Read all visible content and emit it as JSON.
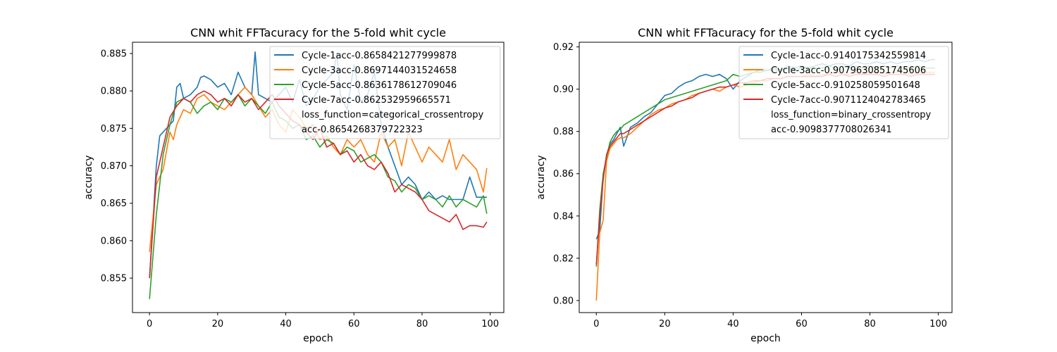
{
  "chart_data": [
    {
      "type": "line",
      "title": "CNN whit FFTacuracy for the 5-fold whit cycle",
      "xlabel": "epoch",
      "ylabel": "accuracy",
      "xlim": [
        -5,
        104
      ],
      "ylim": [
        0.8504,
        0.8865
      ],
      "xticks": [
        0,
        20,
        40,
        60,
        80,
        100
      ],
      "xtick_labels": [
        "0",
        "20",
        "40",
        "60",
        "80",
        "100"
      ],
      "yticks": [
        0.855,
        0.86,
        0.865,
        0.87,
        0.875,
        0.88,
        0.885
      ],
      "ytick_labels": [
        "0.855",
        "0.860",
        "0.865",
        "0.870",
        "0.875",
        "0.880",
        "0.885"
      ],
      "grid": false,
      "legend_position": "top-right",
      "legend_extra": [
        "loss_function=categorical_crossentropy",
        "acc-0.8654268379722323"
      ],
      "series": [
        {
          "name": "Cycle-1acc-0.8658421277999878",
          "color": "#1f77b4",
          "x": [
            0,
            2,
            3,
            5,
            7,
            8,
            9,
            10,
            12,
            14,
            15,
            16,
            18,
            20,
            22,
            24,
            26,
            28,
            30,
            31,
            32,
            34,
            36,
            38,
            40,
            42,
            44,
            46,
            48,
            50,
            52,
            54,
            55,
            56,
            58,
            60,
            62,
            64,
            66,
            68,
            70,
            72,
            74,
            76,
            78,
            80,
            82,
            84,
            86,
            88,
            90,
            92,
            94,
            96,
            99
          ],
          "y": [
            0.855,
            0.87,
            0.874,
            0.875,
            0.876,
            0.8805,
            0.881,
            0.879,
            0.8795,
            0.8805,
            0.8818,
            0.882,
            0.8815,
            0.8805,
            0.881,
            0.8795,
            0.8825,
            0.8805,
            0.8795,
            0.8852,
            0.8795,
            0.879,
            0.8785,
            0.8795,
            0.8805,
            0.8785,
            0.8815,
            0.878,
            0.879,
            0.8805,
            0.8815,
            0.8825,
            0.885,
            0.8795,
            0.8775,
            0.8835,
            0.8785,
            0.8795,
            0.8825,
            0.8755,
            0.8725,
            0.87,
            0.8675,
            0.8685,
            0.8675,
            0.8655,
            0.8665,
            0.8655,
            0.866,
            0.8655,
            0.8655,
            0.8655,
            0.8685,
            0.8658,
            0.8658
          ]
        },
        {
          "name": "Cycle-3acc-0.8697144031524658",
          "color": "#ff7f0e",
          "x": [
            0,
            2,
            4,
            6,
            7,
            8,
            10,
            12,
            14,
            16,
            18,
            20,
            22,
            24,
            26,
            28,
            30,
            32,
            34,
            36,
            38,
            40,
            42,
            44,
            46,
            48,
            50,
            52,
            54,
            56,
            58,
            60,
            62,
            64,
            66,
            68,
            70,
            72,
            74,
            76,
            78,
            80,
            82,
            84,
            86,
            88,
            90,
            92,
            94,
            96,
            98,
            99
          ],
          "y": [
            0.8585,
            0.8675,
            0.8695,
            0.8745,
            0.8735,
            0.8755,
            0.8775,
            0.877,
            0.879,
            0.8795,
            0.8785,
            0.878,
            0.8775,
            0.8785,
            0.8795,
            0.8805,
            0.8795,
            0.878,
            0.8765,
            0.8775,
            0.8755,
            0.8745,
            0.8775,
            0.8765,
            0.875,
            0.8755,
            0.8735,
            0.874,
            0.8725,
            0.8715,
            0.8735,
            0.8725,
            0.8735,
            0.8715,
            0.8705,
            0.8745,
            0.8725,
            0.8735,
            0.87,
            0.8745,
            0.8725,
            0.8705,
            0.8725,
            0.8715,
            0.8705,
            0.8735,
            0.8695,
            0.8715,
            0.8705,
            0.8695,
            0.8665,
            0.8697
          ]
        },
        {
          "name": "Cycle-5acc-0.8636178612709046",
          "color": "#2ca02c",
          "x": [
            0,
            2,
            4,
            6,
            8,
            10,
            12,
            14,
            16,
            18,
            20,
            22,
            24,
            26,
            28,
            30,
            32,
            34,
            36,
            38,
            40,
            42,
            44,
            46,
            48,
            50,
            52,
            54,
            56,
            58,
            60,
            62,
            64,
            66,
            68,
            70,
            72,
            74,
            76,
            78,
            80,
            82,
            84,
            86,
            88,
            90,
            92,
            94,
            96,
            98,
            99
          ],
          "y": [
            0.8522,
            0.8635,
            0.8715,
            0.8755,
            0.8785,
            0.879,
            0.8785,
            0.877,
            0.878,
            0.8785,
            0.8775,
            0.879,
            0.8785,
            0.8795,
            0.878,
            0.879,
            0.878,
            0.877,
            0.8785,
            0.8765,
            0.876,
            0.875,
            0.8755,
            0.8735,
            0.874,
            0.8725,
            0.8735,
            0.873,
            0.8715,
            0.8725,
            0.872,
            0.8705,
            0.871,
            0.8715,
            0.8705,
            0.8685,
            0.868,
            0.8665,
            0.8675,
            0.867,
            0.8655,
            0.866,
            0.8655,
            0.8645,
            0.866,
            0.8645,
            0.8655,
            0.865,
            0.8645,
            0.866,
            0.8636
          ]
        },
        {
          "name": "Cycle-7acc-0.862532959665571",
          "color": "#d62728",
          "x": [
            0,
            2,
            4,
            6,
            8,
            10,
            12,
            14,
            16,
            18,
            20,
            22,
            24,
            26,
            28,
            30,
            32,
            34,
            36,
            38,
            40,
            42,
            44,
            46,
            48,
            50,
            52,
            54,
            56,
            58,
            60,
            62,
            64,
            66,
            68,
            70,
            72,
            74,
            76,
            78,
            80,
            82,
            84,
            86,
            88,
            90,
            92,
            94,
            96,
            98,
            99
          ],
          "y": [
            0.855,
            0.8685,
            0.8725,
            0.8765,
            0.878,
            0.879,
            0.8785,
            0.8795,
            0.88,
            0.8795,
            0.8785,
            0.879,
            0.878,
            0.8795,
            0.8785,
            0.879,
            0.8775,
            0.8785,
            0.8795,
            0.878,
            0.877,
            0.876,
            0.8755,
            0.8745,
            0.8735,
            0.875,
            0.8725,
            0.873,
            0.8715,
            0.872,
            0.8705,
            0.8715,
            0.87,
            0.8695,
            0.8705,
            0.869,
            0.8665,
            0.8675,
            0.867,
            0.8665,
            0.8655,
            0.864,
            0.8635,
            0.863,
            0.8625,
            0.8635,
            0.8615,
            0.862,
            0.862,
            0.8618,
            0.8625
          ]
        }
      ]
    },
    {
      "type": "line",
      "title": "CNN whit FFTacuracy for the 5-fold whit cycle",
      "xlabel": "epoch",
      "ylabel": "accuracy",
      "xlim": [
        -5,
        104
      ],
      "ylim": [
        0.7943,
        0.9222
      ],
      "xticks": [
        0,
        20,
        40,
        60,
        80,
        100
      ],
      "xtick_labels": [
        "0",
        "20",
        "40",
        "60",
        "80",
        "100"
      ],
      "yticks": [
        0.8,
        0.82,
        0.84,
        0.86,
        0.88,
        0.9,
        0.92
      ],
      "ytick_labels": [
        "0.80",
        "0.82",
        "0.84",
        "0.86",
        "0.88",
        "0.90",
        "0.92"
      ],
      "grid": false,
      "legend_position": "top-right",
      "legend_extra": [
        "loss_function=binary_crossentropy",
        "acc-0.9098377708026341"
      ],
      "series": [
        {
          "name": "Cycle-1acc-0.9140175342559814",
          "color": "#1f77b4",
          "x": [
            0,
            1,
            2,
            3,
            4,
            5,
            6,
            7,
            8,
            10,
            12,
            14,
            16,
            18,
            20,
            22,
            24,
            26,
            28,
            30,
            32,
            34,
            36,
            38,
            40,
            42,
            44,
            46,
            48,
            50,
            52,
            54,
            56,
            58,
            60,
            62,
            64,
            66,
            68,
            70,
            72,
            74,
            76,
            78,
            80,
            82,
            84,
            86,
            88,
            90,
            92,
            94,
            96,
            98,
            99
          ],
          "y": [
            0.829,
            0.833,
            0.858,
            0.869,
            0.874,
            0.876,
            0.879,
            0.882,
            0.873,
            0.882,
            0.884,
            0.887,
            0.889,
            0.893,
            0.897,
            0.898,
            0.901,
            0.903,
            0.904,
            0.906,
            0.907,
            0.906,
            0.907,
            0.905,
            0.9,
            0.904,
            0.906,
            0.908,
            0.909,
            0.909,
            0.91,
            0.909,
            0.911,
            0.91,
            0.911,
            0.91,
            0.911,
            0.912,
            0.911,
            0.912,
            0.912,
            0.911,
            0.913,
            0.912,
            0.912,
            0.913,
            0.912,
            0.913,
            0.912,
            0.913,
            0.913,
            0.914,
            0.913,
            0.914,
            0.914
          ]
        },
        {
          "name": "Cycle-3acc-0.9079630851745606",
          "color": "#ff7f0e",
          "x": [
            0,
            1,
            2,
            3,
            4,
            5,
            6,
            7,
            8,
            10,
            12,
            14,
            16,
            18,
            20,
            22,
            24,
            26,
            28,
            30,
            32,
            34,
            36,
            38,
            40,
            42,
            44,
            46,
            48,
            50,
            52,
            54,
            56,
            58,
            60,
            62,
            64,
            66,
            68,
            70,
            72,
            74,
            76,
            78,
            80,
            82,
            84,
            86,
            88,
            90,
            92,
            94,
            96,
            98,
            99
          ],
          "y": [
            0.8,
            0.832,
            0.838,
            0.866,
            0.872,
            0.874,
            0.876,
            0.877,
            0.877,
            0.879,
            0.882,
            0.885,
            0.888,
            0.89,
            0.891,
            0.893,
            0.894,
            0.895,
            0.897,
            0.898,
            0.899,
            0.9,
            0.899,
            0.901,
            0.902,
            0.901,
            0.902,
            0.903,
            0.904,
            0.904,
            0.905,
            0.905,
            0.906,
            0.906,
            0.906,
            0.907,
            0.906,
            0.907,
            0.907,
            0.908,
            0.907,
            0.907,
            0.908,
            0.907,
            0.908,
            0.908,
            0.907,
            0.908,
            0.908,
            0.908,
            0.907,
            0.908,
            0.908,
            0.908,
            0.908
          ]
        },
        {
          "name": "Cycle-5acc-0.910258059501648",
          "color": "#2ca02c",
          "x": [
            0,
            1,
            2,
            3,
            4,
            5,
            6,
            7,
            8,
            10,
            12,
            14,
            16,
            18,
            20,
            22,
            24,
            26,
            28,
            30,
            32,
            34,
            36,
            38,
            40,
            42,
            44,
            46,
            48,
            50,
            52,
            54,
            56,
            58,
            60,
            62,
            64,
            66,
            68,
            70,
            72,
            74,
            76,
            78,
            80,
            82,
            84,
            86,
            88,
            90,
            92,
            94,
            96,
            98,
            99
          ],
          "y": [
            0.816,
            0.843,
            0.86,
            0.868,
            0.875,
            0.878,
            0.88,
            0.881,
            0.883,
            0.885,
            0.887,
            0.889,
            0.891,
            0.893,
            0.895,
            0.896,
            0.897,
            0.898,
            0.899,
            0.9,
            0.901,
            0.902,
            0.903,
            0.904,
            0.907,
            0.906,
            0.907,
            0.908,
            0.908,
            0.909,
            0.909,
            0.909,
            0.91,
            0.909,
            0.91,
            0.91,
            0.91,
            0.91,
            0.911,
            0.91,
            0.911,
            0.91,
            0.911,
            0.91,
            0.911,
            0.91,
            0.911,
            0.91,
            0.911,
            0.91,
            0.91,
            0.911,
            0.91,
            0.91,
            0.91
          ]
        },
        {
          "name": "Cycle-7acc-0.9071124042783465",
          "color": "#d62728",
          "x": [
            0,
            1,
            2,
            3,
            4,
            5,
            6,
            7,
            8,
            10,
            12,
            14,
            16,
            18,
            20,
            22,
            24,
            26,
            28,
            30,
            32,
            34,
            36,
            38,
            40,
            42,
            44,
            46,
            48,
            50,
            52,
            54,
            56,
            58,
            60,
            62,
            64,
            66,
            68,
            70,
            72,
            74,
            76,
            78,
            80,
            82,
            84,
            86,
            88,
            90,
            92,
            94,
            96,
            98,
            99
          ],
          "y": [
            0.817,
            0.84,
            0.857,
            0.869,
            0.873,
            0.875,
            0.877,
            0.879,
            0.879,
            0.881,
            0.883,
            0.885,
            0.887,
            0.889,
            0.891,
            0.892,
            0.894,
            0.895,
            0.896,
            0.898,
            0.899,
            0.9,
            0.901,
            0.901,
            0.902,
            0.903,
            0.903,
            0.904,
            0.904,
            0.905,
            0.905,
            0.905,
            0.906,
            0.906,
            0.906,
            0.906,
            0.906,
            0.906,
            0.907,
            0.906,
            0.907,
            0.906,
            0.907,
            0.907,
            0.907,
            0.907,
            0.906,
            0.907,
            0.907,
            0.907,
            0.906,
            0.907,
            0.907,
            0.907,
            0.907
          ]
        }
      ]
    }
  ]
}
